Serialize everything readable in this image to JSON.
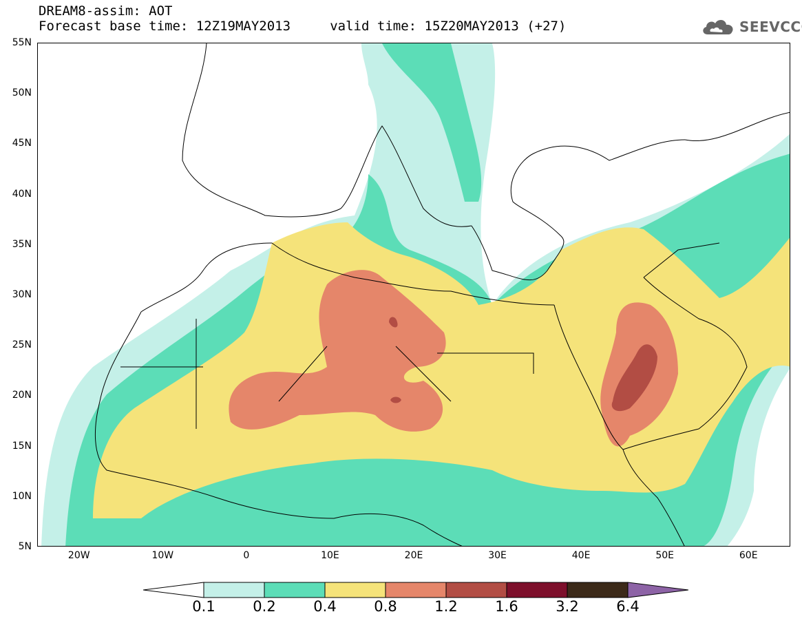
{
  "title": {
    "line1": "DREAM8-assim: AOT",
    "line2": "Forecast base time: 12Z19MAY2013     valid time: 15Z20MAY2013 (+27)"
  },
  "logo": {
    "text": "SEEVCCC",
    "icon": "cloud-icon"
  },
  "map": {
    "lon_range": [
      -25,
      65
    ],
    "lat_range": [
      5,
      55
    ],
    "lat_labels": [
      "55N",
      "50N",
      "45N",
      "40N",
      "35N",
      "30N",
      "25N",
      "20N",
      "15N",
      "10N",
      "5N"
    ],
    "lat_values": [
      55,
      50,
      45,
      40,
      35,
      30,
      25,
      20,
      15,
      10,
      5
    ],
    "lon_labels": [
      "20W",
      "10W",
      "0",
      "10E",
      "20E",
      "30E",
      "40E",
      "50E",
      "60E"
    ],
    "lon_values": [
      -20,
      -10,
      0,
      10,
      20,
      30,
      40,
      50,
      60
    ]
  },
  "colorbar": {
    "labels": [
      "0.1",
      "0.2",
      "0.4",
      "0.8",
      "1.2",
      "1.6",
      "3.2",
      "6.4"
    ],
    "colors": [
      "#c4f0e8",
      "#5cddb7",
      "#f5e37a",
      "#e5866a",
      "#b24d44",
      "#7d0f2b",
      "#3c2a19"
    ],
    "under_color": "#ffffff",
    "over_color": "#8d63a6"
  },
  "colors": {
    "c01": "#c4f0e8",
    "c02": "#5cddb7",
    "c04": "#f5e37a",
    "c08": "#e5866a",
    "c12": "#b24d44"
  }
}
